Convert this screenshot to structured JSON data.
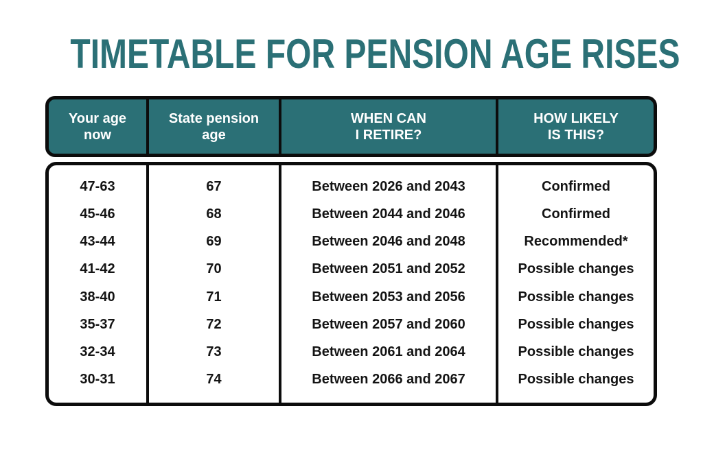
{
  "title": "TIMETABLE FOR PENSION AGE RISES",
  "colors": {
    "teal": "#2B7076",
    "border": "#0C0C0C",
    "header_text": "#FFFFFF",
    "body_text": "#141414",
    "background": "#FFFFFF"
  },
  "header": {
    "columns": [
      {
        "line1": "Your age",
        "line2": "now"
      },
      {
        "line1": "State pension",
        "line2": "age"
      },
      {
        "line1": "WHEN CAN",
        "line2": "I RETIRE?"
      },
      {
        "line1": "HOW LIKELY",
        "line2": "IS THIS?"
      }
    ]
  },
  "chart_data": {
    "type": "table",
    "title": "TIMETABLE FOR PENSION AGE RISES",
    "columns": [
      "Your age now",
      "State pension age",
      "WHEN CAN I RETIRE?",
      "HOW LIKELY IS THIS?"
    ],
    "rows": [
      [
        "47-63",
        "67",
        "Between 2026 and 2043",
        "Confirmed"
      ],
      [
        "45-46",
        "68",
        "Between 2044 and 2046",
        "Confirmed"
      ],
      [
        "43-44",
        "69",
        "Between 2046 and 2048",
        "Recommended*"
      ],
      [
        "41-42",
        "70",
        "Between 2051 and 2052",
        "Possible changes"
      ],
      [
        "38-40",
        "71",
        "Between 2053 and 2056",
        "Possible changes"
      ],
      [
        "35-37",
        "72",
        "Between 2057 and 2060",
        "Possible changes"
      ],
      [
        "32-34",
        "73",
        "Between 2061 and 2064",
        "Possible changes"
      ],
      [
        "30-31",
        "74",
        "Between 2066 and 2067",
        "Possible changes"
      ]
    ]
  }
}
